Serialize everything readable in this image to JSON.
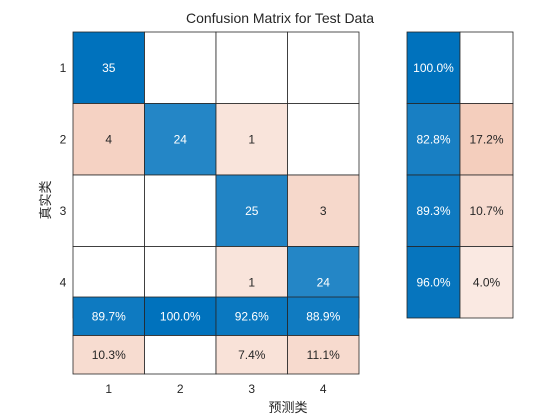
{
  "chart_data": {
    "type": "heatmap",
    "title": "Confusion Matrix for Test Data",
    "xlabel": "预测类",
    "ylabel": "真实类",
    "classes": [
      "1",
      "2",
      "3",
      "4"
    ],
    "matrix": [
      [
        35,
        0,
        0,
        0
      ],
      [
        4,
        24,
        1,
        0
      ],
      [
        0,
        0,
        25,
        3
      ],
      [
        0,
        0,
        1,
        24
      ]
    ],
    "row_summary": {
      "correct": [
        "100.0%",
        "82.8%",
        "89.3%",
        "96.0%"
      ],
      "incorrect": [
        "",
        "17.2%",
        "10.7%",
        "4.0%"
      ]
    },
    "column_summary": {
      "correct": [
        "89.7%",
        "100.0%",
        "92.6%",
        "88.9%"
      ],
      "incorrect": [
        "10.3%",
        "",
        "7.4%",
        "11.1%"
      ]
    },
    "colors": {
      "diagonal_strong": "#0072BD",
      "off_diagonal_strong": "#D95319",
      "grid": "#262626",
      "text_dark": "#262626",
      "text_light": "#ffffff"
    }
  }
}
